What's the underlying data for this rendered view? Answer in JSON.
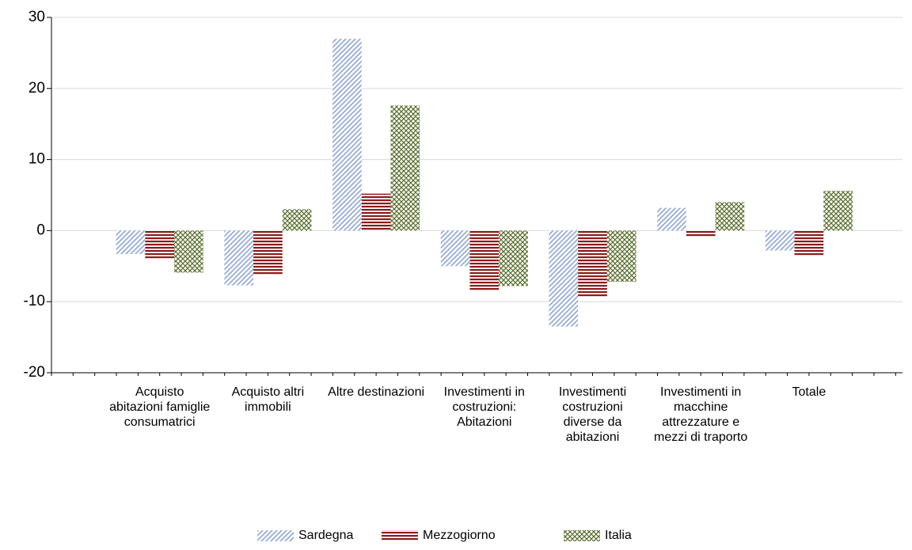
{
  "chart_data": {
    "type": "bar",
    "categories": [
      "Acquisto abitazioni famiglie consumatrici",
      "Acquisto altri immobili",
      "Altre destinazioni",
      "Investimenti in costruzioni: Abitazioni",
      "Investimenti costruzioni diverse da abitazioni",
      "Investimenti in macchine attrezzature e mezzi di traporto",
      "Totale"
    ],
    "series": [
      {
        "name": "Sardegna",
        "color": "#8fa6d4",
        "pattern": "diagonal",
        "values": [
          -3.3,
          -7.7,
          27.0,
          -5.0,
          -13.5,
          3.2,
          -2.8
        ]
      },
      {
        "name": "Mezzogiorno",
        "color": "#8b1a1a",
        "pattern": "horizontal",
        "values": [
          -3.9,
          -6.2,
          5.2,
          -8.4,
          -9.3,
          -0.8,
          -3.5
        ]
      },
      {
        "name": "Italia",
        "color": "#5a6e2e",
        "pattern": "crosshatch",
        "values": [
          -5.9,
          3.0,
          17.6,
          -7.8,
          -7.2,
          4.0,
          5.6
        ]
      }
    ],
    "ylim": [
      -20,
      30
    ],
    "yticks": [
      -20,
      -10,
      0,
      10,
      20,
      30
    ],
    "grid": true,
    "legend": "bottom"
  }
}
